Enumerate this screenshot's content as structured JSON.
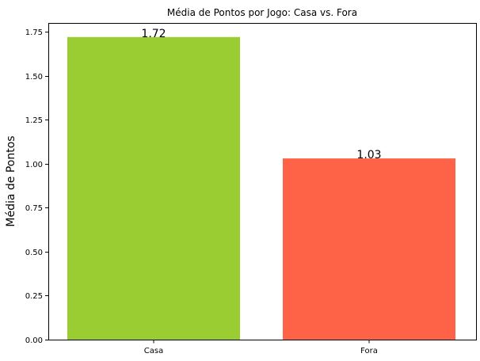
{
  "chart_data": {
    "type": "bar",
    "title": "Média de Pontos por Jogo: Casa vs. Fora",
    "xlabel": "",
    "ylabel": "Média de Pontos",
    "categories": [
      "Casa",
      "Fora"
    ],
    "values": [
      1.72,
      1.03
    ],
    "data_labels": [
      "1.72",
      "1.03"
    ],
    "colors": [
      "#9acd32",
      "#ff6347"
    ],
    "ylim": [
      0,
      1.8
    ],
    "yticks": [
      0.0,
      0.25,
      0.5,
      0.75,
      1.0,
      1.25,
      1.5,
      1.75
    ],
    "ytick_labels": [
      "0.00",
      "0.25",
      "0.50",
      "0.75",
      "1.00",
      "1.25",
      "1.50",
      "1.75"
    ],
    "grid": false,
    "legend": "none"
  }
}
